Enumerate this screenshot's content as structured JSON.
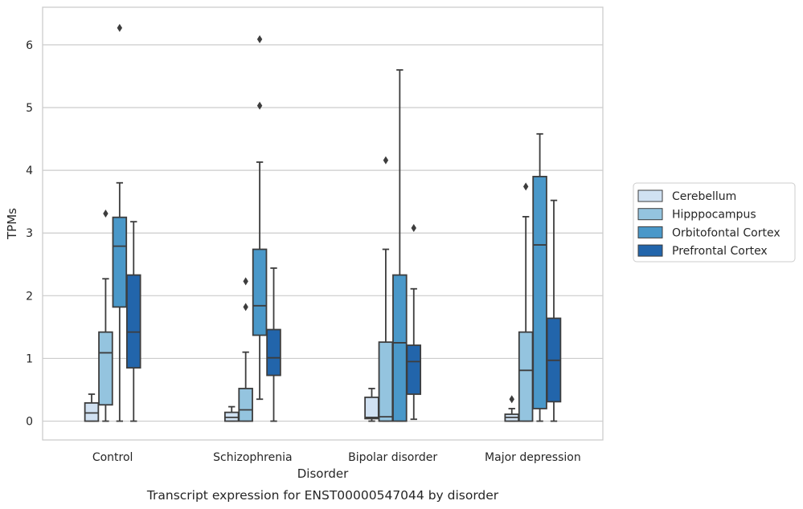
{
  "chart_data": {
    "type": "box",
    "xlabel": "Disorder",
    "ylabel": "TPMs",
    "caption": "Transcript expression for ENST00000547044 by disorder",
    "ylim": [
      -0.3,
      6.6
    ],
    "yticks": [
      0,
      1,
      2,
      3,
      4,
      5,
      6
    ],
    "grid": "horizontal",
    "legend_position": "right",
    "categories": [
      "Control",
      "Schizophrenia",
      "Bipolar disorder",
      "Major depression"
    ],
    "series": [
      {
        "name": "Cerebellum",
        "color": "#d0e1f2",
        "boxes": [
          {
            "whislo": 0.0,
            "q1": 0.0,
            "med": 0.13,
            "q3": 0.29,
            "whishi": 0.43,
            "fliers": []
          },
          {
            "whislo": 0.0,
            "q1": 0.0,
            "med": 0.06,
            "q3": 0.14,
            "whishi": 0.23,
            "fliers": []
          },
          {
            "whislo": 0.0,
            "q1": 0.04,
            "med": 0.06,
            "q3": 0.38,
            "whishi": 0.52,
            "fliers": []
          },
          {
            "whislo": 0.0,
            "q1": 0.0,
            "med": 0.06,
            "q3": 0.11,
            "whishi": 0.2,
            "fliers": [
              0.35
            ]
          }
        ]
      },
      {
        "name": "Hipppocampus",
        "color": "#94c4df",
        "boxes": [
          {
            "whislo": 0.0,
            "q1": 0.26,
            "med": 1.09,
            "q3": 1.42,
            "whishi": 2.27,
            "fliers": [
              3.31
            ]
          },
          {
            "whislo": 0.0,
            "q1": 0.0,
            "med": 0.18,
            "q3": 0.52,
            "whishi": 1.1,
            "fliers": [
              1.82,
              2.23
            ]
          },
          {
            "whislo": 0.0,
            "q1": 0.0,
            "med": 0.07,
            "q3": 1.26,
            "whishi": 2.74,
            "fliers": [
              4.16
            ]
          },
          {
            "whislo": 0.0,
            "q1": 0.0,
            "med": 0.81,
            "q3": 1.42,
            "whishi": 3.26,
            "fliers": [
              3.74
            ]
          }
        ]
      },
      {
        "name": "Orbitofontal Cortex",
        "color": "#4a98c9",
        "boxes": [
          {
            "whislo": 0.0,
            "q1": 1.82,
            "med": 2.79,
            "q3": 3.25,
            "whishi": 3.8,
            "fliers": [
              6.27
            ]
          },
          {
            "whislo": 0.35,
            "q1": 1.37,
            "med": 1.84,
            "q3": 2.74,
            "whishi": 4.13,
            "fliers": [
              5.03,
              6.09
            ]
          },
          {
            "whislo": 0.0,
            "q1": 0.0,
            "med": 1.25,
            "q3": 2.33,
            "whishi": 5.6,
            "fliers": []
          },
          {
            "whislo": 0.0,
            "q1": 0.2,
            "med": 2.81,
            "q3": 3.9,
            "whishi": 4.58,
            "fliers": []
          }
        ]
      },
      {
        "name": "Prefrontal Cortex",
        "color": "#2265ab",
        "boxes": [
          {
            "whislo": 0.0,
            "q1": 0.85,
            "med": 1.42,
            "q3": 2.33,
            "whishi": 3.18,
            "fliers": []
          },
          {
            "whislo": 0.0,
            "q1": 0.73,
            "med": 1.01,
            "q3": 1.46,
            "whishi": 2.44,
            "fliers": []
          },
          {
            "whislo": 0.03,
            "q1": 0.43,
            "med": 0.95,
            "q3": 1.21,
            "whishi": 2.11,
            "fliers": [
              3.08
            ]
          },
          {
            "whislo": 0.0,
            "q1": 0.31,
            "med": 0.97,
            "q3": 1.64,
            "whishi": 3.52,
            "fliers": []
          }
        ]
      }
    ]
  }
}
